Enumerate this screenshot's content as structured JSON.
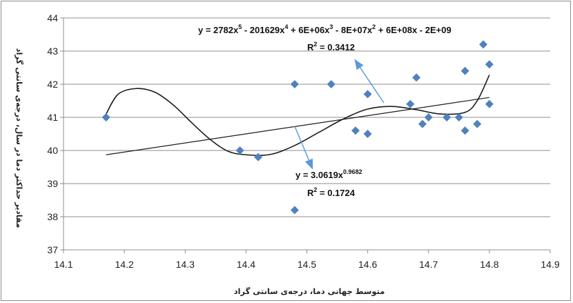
{
  "chart_data": {
    "type": "scatter",
    "title": "",
    "xlabel": "متوسط جهانی دما، درجه‌ی سانتی گراد",
    "ylabel": "مقادیر حداکثر دما در سال، درجه‌ی سانتی گراد",
    "xlim": [
      14.1,
      14.9
    ],
    "ylim": [
      37,
      44
    ],
    "x_ticks": [
      "14.1",
      "14.2",
      "14.3",
      "14.4",
      "14.5",
      "14.6",
      "14.7",
      "14.8",
      "14.9"
    ],
    "y_ticks": [
      "37",
      "38",
      "39",
      "40",
      "41",
      "42",
      "43",
      "44"
    ],
    "grid": "horizontal",
    "points": [
      {
        "x": 14.17,
        "y": 41.0
      },
      {
        "x": 14.39,
        "y": 40.0
      },
      {
        "x": 14.42,
        "y": 39.8
      },
      {
        "x": 14.48,
        "y": 42.0
      },
      {
        "x": 14.48,
        "y": 38.2
      },
      {
        "x": 14.54,
        "y": 42.0
      },
      {
        "x": 14.58,
        "y": 40.6
      },
      {
        "x": 14.6,
        "y": 41.7
      },
      {
        "x": 14.6,
        "y": 40.5
      },
      {
        "x": 14.67,
        "y": 41.4
      },
      {
        "x": 14.68,
        "y": 42.2
      },
      {
        "x": 14.69,
        "y": 40.8
      },
      {
        "x": 14.7,
        "y": 41.0
      },
      {
        "x": 14.73,
        "y": 41.0
      },
      {
        "x": 14.75,
        "y": 41.0
      },
      {
        "x": 14.76,
        "y": 42.4
      },
      {
        "x": 14.76,
        "y": 40.6
      },
      {
        "x": 14.78,
        "y": 40.8
      },
      {
        "x": 14.79,
        "y": 43.2
      },
      {
        "x": 14.8,
        "y": 42.6
      },
      {
        "x": 14.8,
        "y": 41.4
      }
    ],
    "power_trendline": {
      "x": [
        14.17,
        14.8
      ],
      "y": [
        39.87,
        41.6
      ]
    },
    "poly_trendline": {
      "x": [
        14.17,
        14.19,
        14.22,
        14.25,
        14.28,
        14.31,
        14.34,
        14.37,
        14.4,
        14.44,
        14.48,
        14.52,
        14.56,
        14.6,
        14.64,
        14.68,
        14.72,
        14.76,
        14.78,
        14.8
      ],
      "y": [
        41.1,
        41.7,
        41.87,
        41.76,
        41.38,
        40.85,
        40.35,
        39.98,
        39.87,
        39.88,
        40.15,
        40.55,
        40.95,
        41.25,
        41.33,
        41.23,
        41.1,
        41.15,
        41.5,
        42.28
      ]
    },
    "annotations": {
      "poly_equation": [
        "y = 2782x",
        "5",
        " - 201629x",
        "4",
        " + 6E+06x",
        "3",
        " - 8E+07x",
        "2",
        " + 6E+08x - 2E+09"
      ],
      "poly_r2": [
        "R",
        "2",
        " = 0.3412"
      ],
      "power_equation": [
        "y = 3.0619x",
        "0.9682"
      ],
      "power_r2": [
        "R",
        "2",
        " = 0.1724"
      ]
    },
    "colors": {
      "marker": "#4f81bd",
      "trendline": "#1a1a1a",
      "grid": "#8c8c8c",
      "arrow": "#5b9bd5"
    }
  }
}
